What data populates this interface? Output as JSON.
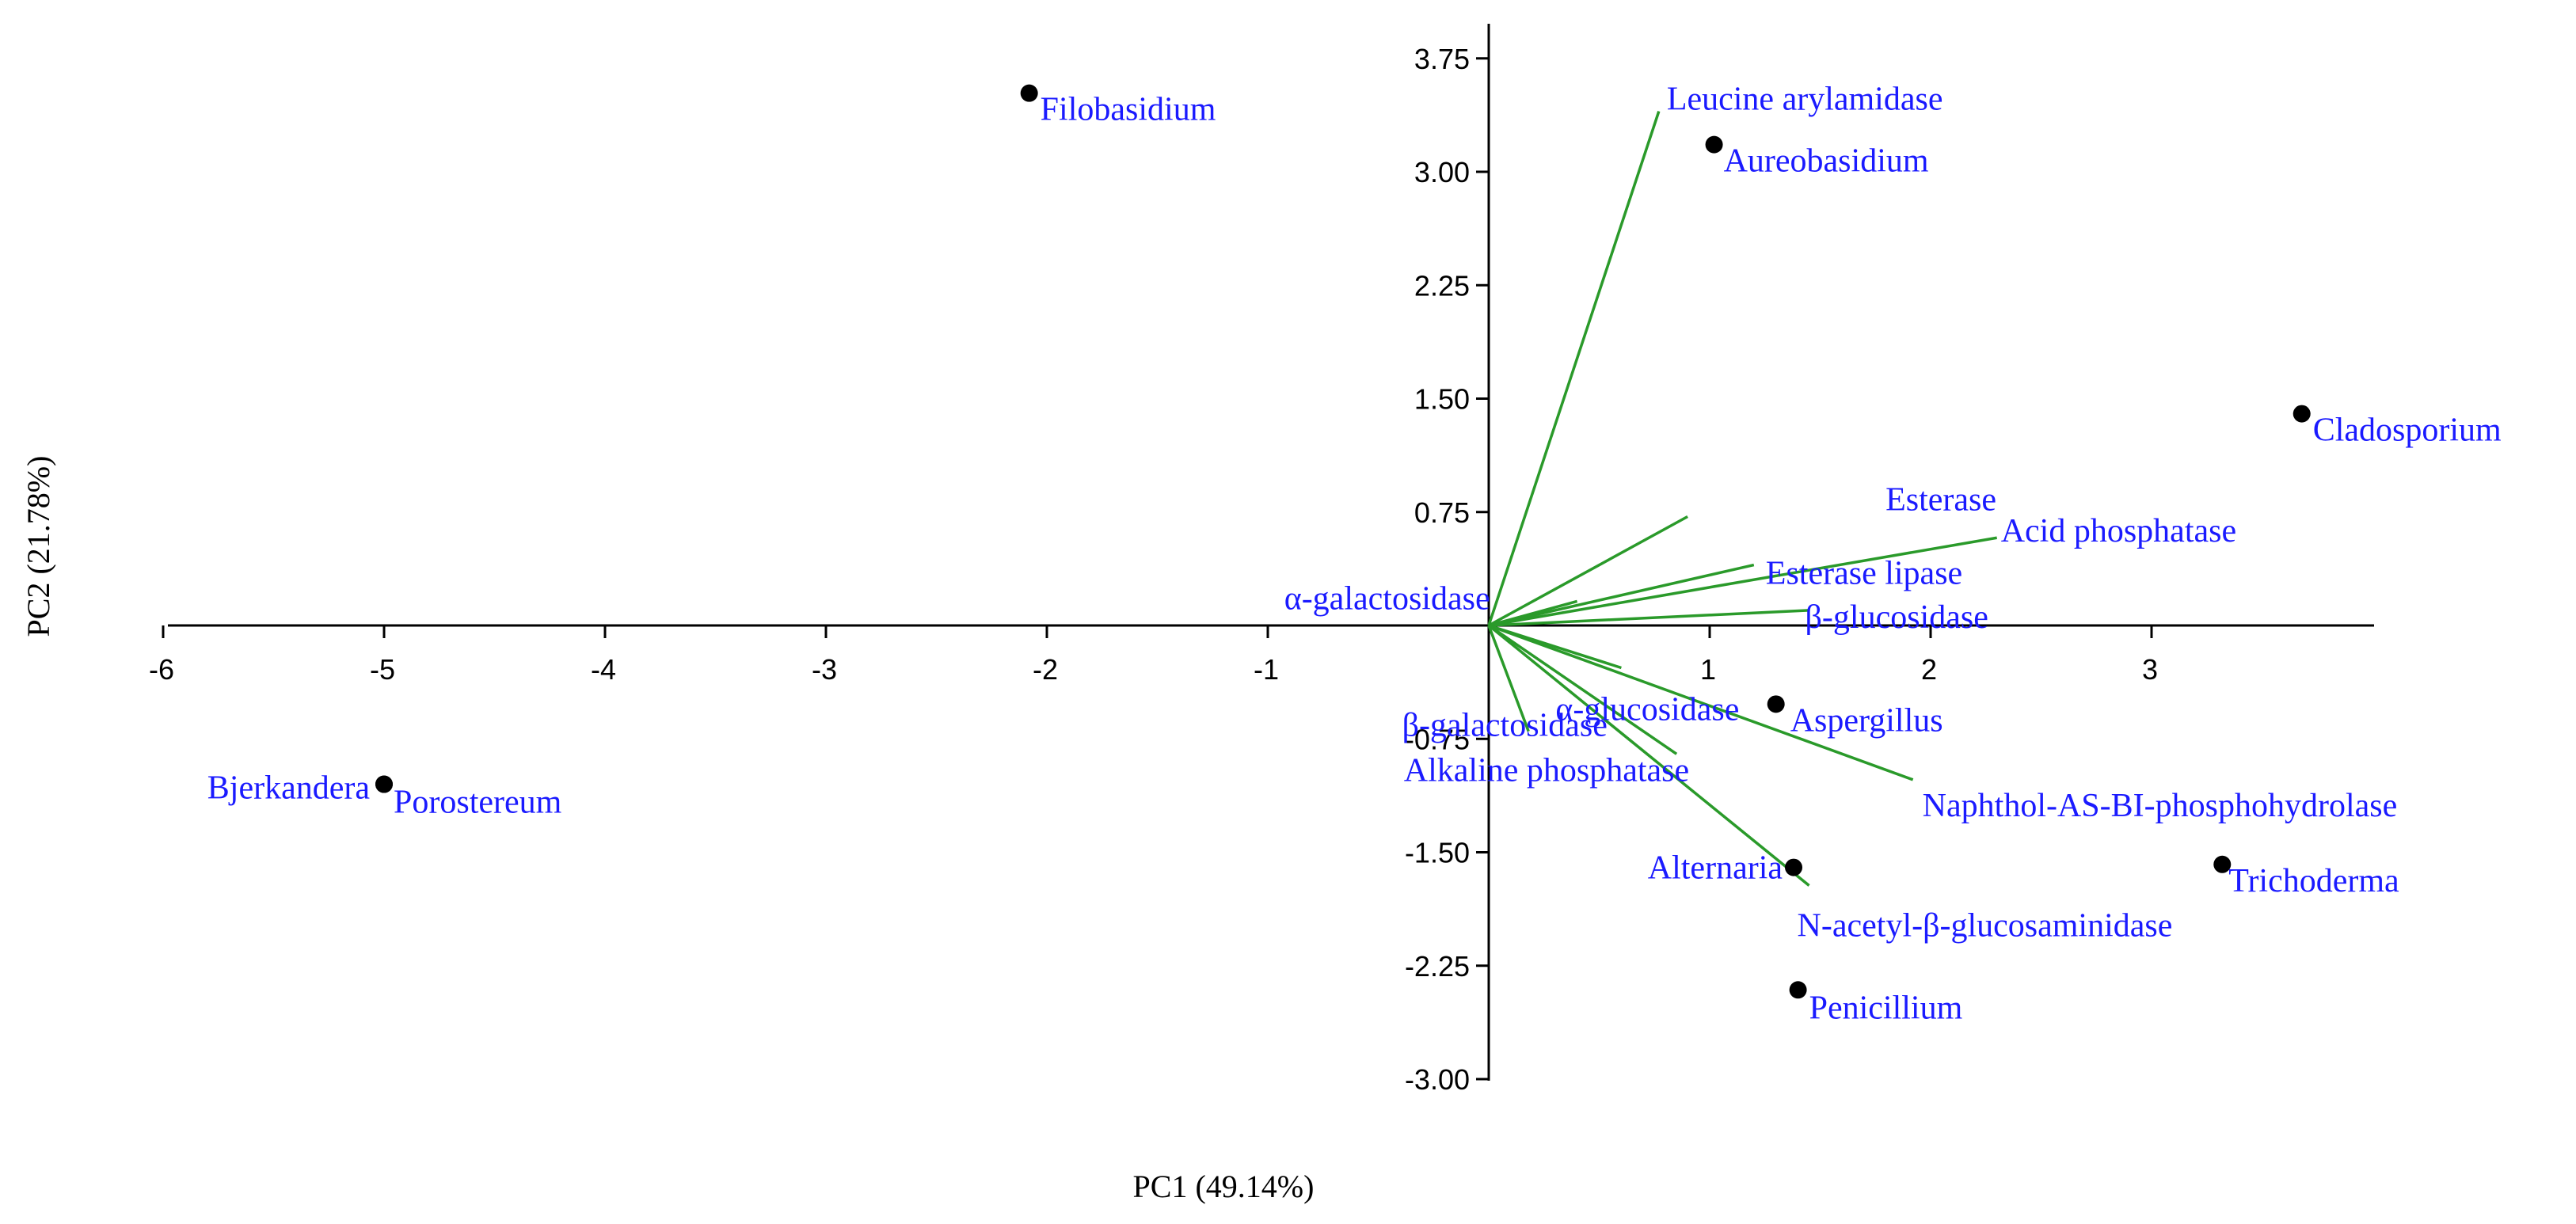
{
  "chart_data": {
    "type": "scatter",
    "subtype": "pca-biplot",
    "title": "",
    "xlabel": "PC1 (49.14%)",
    "ylabel": "PC2 (21.78%)",
    "xlim": [
      -6,
      4
    ],
    "ylim": [
      -3.0,
      4.0
    ],
    "x_ticks": [
      "-6",
      "-5",
      "-4",
      "-3",
      "-2",
      "-1",
      "1",
      "2",
      "3"
    ],
    "y_ticks": [
      "3.75",
      "3.00",
      "2.25",
      "1.50",
      "0.75",
      "-0.75",
      "-1.50",
      "-2.25",
      "-3.00"
    ],
    "grid": false,
    "legend": "none",
    "colors": {
      "points": "#000000",
      "labels": "#1a1aff",
      "vectors": "#2a9a2a",
      "axes": "#000000"
    },
    "points": [
      {
        "name": "Filobasidium",
        "x": -2.08,
        "y": 3.52
      },
      {
        "name": "Aureobasidium",
        "x": 1.02,
        "y": 3.18
      },
      {
        "name": "Cladosporium",
        "x": 3.68,
        "y": 1.4
      },
      {
        "name": "Bjerkandera",
        "x": -5.0,
        "y": -1.05
      },
      {
        "name": "Porostereum",
        "x": -5.0,
        "y": -1.05
      },
      {
        "name": "Aspergillus",
        "x": 1.3,
        "y": -0.52
      },
      {
        "name": "Alternaria",
        "x": 1.38,
        "y": -1.6
      },
      {
        "name": "Trichoderma",
        "x": 3.32,
        "y": -1.58
      },
      {
        "name": "Penicillium",
        "x": 1.4,
        "y": -2.41
      }
    ],
    "vectors": [
      {
        "name": "Leucine arylamidase",
        "x": 0.77,
        "y": 3.4
      },
      {
        "name": "Esterase",
        "x": 0.9,
        "y": 0.72
      },
      {
        "name": "Acid phosphatase",
        "x": 2.3,
        "y": 0.58
      },
      {
        "name": "Esterase lipase",
        "x": 1.2,
        "y": 0.4
      },
      {
        "name": "α-galactosidase",
        "x": 0.4,
        "y": 0.16
      },
      {
        "name": "β-glucosidase",
        "x": 1.45,
        "y": 0.1
      },
      {
        "name": "α-glucosidase",
        "x": 0.6,
        "y": -0.28
      },
      {
        "name": "Naphthol-AS-BI-phosphohydrolase",
        "x": 1.92,
        "y": -1.02
      },
      {
        "name": "N-acetyl-β-glucosaminidase",
        "x": 1.45,
        "y": -1.72
      },
      {
        "name": "Alkaline phosphatase",
        "x": 0.85,
        "y": -0.85
      },
      {
        "name": "β-galactosidase",
        "x": 0.18,
        "y": -0.7
      }
    ]
  }
}
